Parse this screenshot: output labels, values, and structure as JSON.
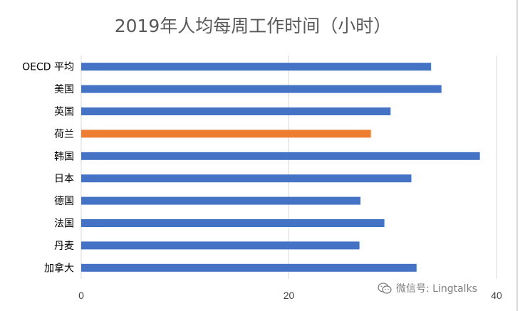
{
  "chart_data": {
    "type": "bar",
    "orientation": "horizontal",
    "title": "2019年人均每周工作时间（小时）",
    "categories": [
      "OECD 平均",
      "美国",
      "英国",
      "荷兰",
      "韩国",
      "日本",
      "德国",
      "法国",
      "丹麦",
      "加拿大"
    ],
    "values": [
      33.7,
      34.7,
      29.8,
      27.9,
      38.4,
      31.8,
      26.9,
      29.2,
      26.8,
      32.3
    ],
    "highlight": "荷兰",
    "xlim": [
      0,
      40
    ],
    "xticks": [
      "0",
      "20",
      "40"
    ],
    "grid": true,
    "colors": {
      "default": "#4472C4",
      "highlight": "#ED7D31",
      "grid": "#D9D9D9"
    }
  },
  "watermark": {
    "text": "微信号: Lingtalks",
    "icon": "wechat-icon"
  }
}
